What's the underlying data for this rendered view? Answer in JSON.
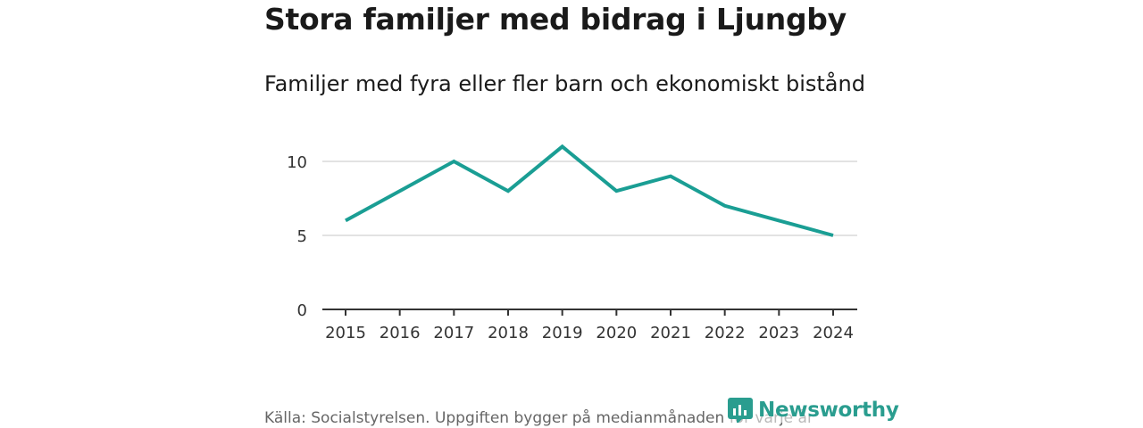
{
  "chart_data": {
    "type": "line",
    "title": "Stora familjer med bidrag i Ljungby",
    "subtitle": "Familjer med fyra eller fler barn och ekonomiskt bistånd",
    "x": [
      "2015",
      "2016",
      "2017",
      "2018",
      "2019",
      "2020",
      "2021",
      "2022",
      "2023",
      "2024"
    ],
    "series": [
      {
        "values": [
          6,
          8,
          10,
          8,
          11,
          8,
          9,
          7,
          6,
          5
        ]
      }
    ],
    "y_ticks": [
      "0",
      "5",
      "10"
    ],
    "ylim": [
      0,
      11
    ],
    "xlabel": "",
    "ylabel": "",
    "grid": true,
    "line_color": "#1a9e94",
    "grid_color": "#d9d9d9",
    "axis_color": "#333333"
  },
  "source": "Källa: Socialstyrelsen. Uppgiften bygger på medianmånaden för varje år",
  "logo": {
    "text": "Newsworthy",
    "icon": "newsworthy-logo-icon",
    "color": "#2a9d8f"
  }
}
